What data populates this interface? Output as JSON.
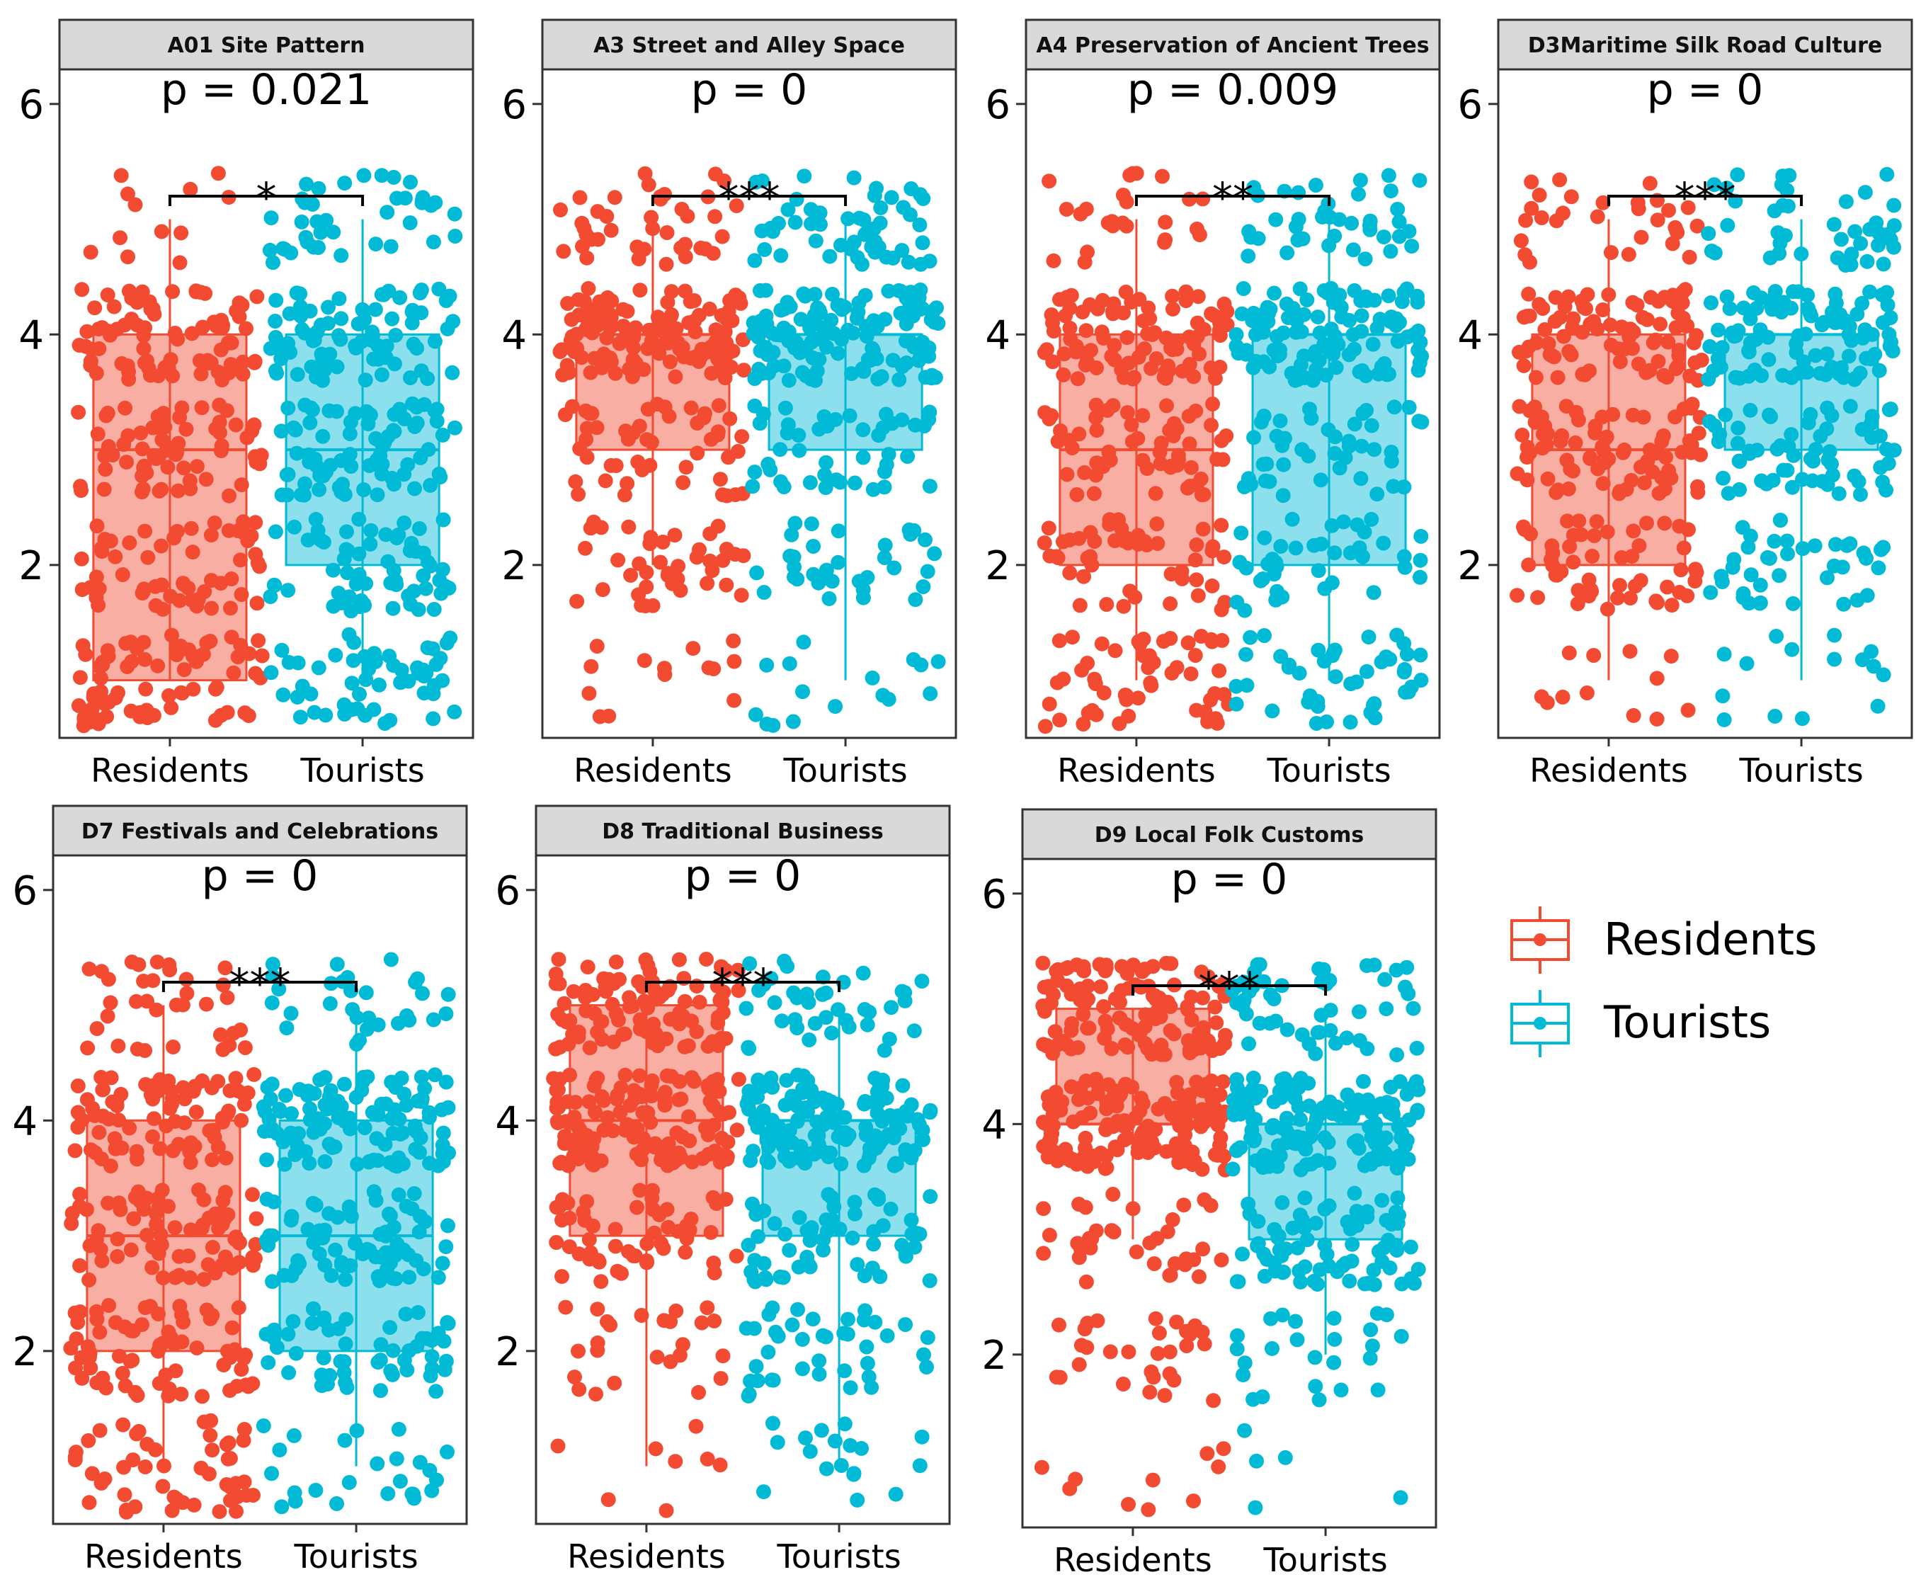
{
  "chart_data": {
    "type": "boxplot-jitter",
    "categories": [
      "Residents",
      "Tourists"
    ],
    "colors": {
      "Residents": "#F24B32",
      "Tourists": "#00BAD6"
    },
    "legend": {
      "placement": "right",
      "entries": [
        "Residents",
        "Tourists"
      ]
    },
    "yticks": [
      2,
      4,
      6
    ],
    "ylim": [
      0.5,
      6.3
    ],
    "panels": [
      {
        "title": "A01  Site Pattern",
        "p_label": "p = 0.021",
        "stars": "*",
        "boxes": [
          {
            "group": "Residents",
            "lower_whisker": 1,
            "q1": 1,
            "median": 3,
            "q3": 4,
            "upper_whisker": 5
          },
          {
            "group": "Tourists",
            "lower_whisker": 1,
            "q1": 2,
            "median": 3,
            "q3": 4,
            "upper_whisker": 5
          }
        ],
        "level_counts": {
          "Residents": [
            75,
            60,
            70,
            85,
            12
          ],
          "Tourists": [
            55,
            65,
            80,
            85,
            40
          ]
        }
      },
      {
        "title": "A3 Street and Alley Space",
        "p_label": "p = 0",
        "stars": "***",
        "boxes": [
          {
            "group": "Residents",
            "lower_whisker": 2,
            "q1": 3,
            "median": 4,
            "q3": 4,
            "upper_whisker": 5
          },
          {
            "group": "Tourists",
            "lower_whisker": 1,
            "q1": 3,
            "median": 4,
            "q3": 4,
            "upper_whisker": 5
          }
        ],
        "level_counts": {
          "Residents": [
            14,
            40,
            50,
            130,
            40
          ],
          "Tourists": [
            16,
            35,
            45,
            125,
            55
          ]
        }
      },
      {
        "title": "A4 Preservation of Ancient Trees",
        "p_label": "p = 0.009",
        "stars": "**",
        "boxes": [
          {
            "group": "Residents",
            "lower_whisker": 1,
            "q1": 2,
            "median": 3,
            "q3": 4,
            "upper_whisker": 5
          },
          {
            "group": "Tourists",
            "lower_whisker": 1,
            "q1": 2,
            "median": 4,
            "q3": 4,
            "upper_whisker": 5
          }
        ],
        "level_counts": {
          "Residents": [
            55,
            50,
            60,
            95,
            25
          ],
          "Tourists": [
            45,
            40,
            45,
            115,
            40
          ]
        }
      },
      {
        "title": "D3Maritime Silk Road Culture",
        "p_label": "p = 0",
        "stars": "***",
        "boxes": [
          {
            "group": "Residents",
            "lower_whisker": 1,
            "q1": 2,
            "median": 3,
            "q3": 4,
            "upper_whisker": 5
          },
          {
            "group": "Tourists",
            "lower_whisker": 1,
            "q1": 3,
            "median": 4,
            "q3": 4,
            "upper_whisker": 5
          }
        ],
        "level_counts": {
          "Residents": [
            12,
            55,
            80,
            90,
            30
          ],
          "Tourists": [
            15,
            40,
            65,
            100,
            45
          ]
        }
      },
      {
        "title": "D7 Festivals and Celebrations",
        "p_label": "p = 0",
        "stars": "***",
        "boxes": [
          {
            "group": "Residents",
            "lower_whisker": 1,
            "q1": 2,
            "median": 3,
            "q3": 4,
            "upper_whisker": 5
          },
          {
            "group": "Tourists",
            "lower_whisker": 1,
            "q1": 2,
            "median": 3,
            "q3": 4,
            "upper_whisker": 5
          }
        ],
        "level_counts": {
          "Residents": [
            50,
            75,
            80,
            80,
            35
          ],
          "Tourists": [
            25,
            55,
            75,
            110,
            30
          ]
        }
      },
      {
        "title": "D8 Traditional Business",
        "p_label": "p = 0",
        "stars": "***",
        "boxes": [
          {
            "group": "Residents",
            "lower_whisker": 1,
            "q1": 3,
            "median": 4,
            "q3": 5,
            "upper_whisker": 5
          },
          {
            "group": "Tourists",
            "lower_whisker": 1,
            "q1": 3,
            "median": 4,
            "q3": 4,
            "upper_whisker": 5
          }
        ],
        "level_counts": {
          "Residents": [
            8,
            25,
            55,
            130,
            100
          ],
          "Tourists": [
            18,
            40,
            60,
            140,
            40
          ]
        }
      },
      {
        "title": "D9 Local Folk Customs",
        "p_label": "p = 0",
        "stars": "***",
        "boxes": [
          {
            "group": "Residents",
            "lower_whisker": 3,
            "q1": 4,
            "median": 4,
            "q3": 5,
            "upper_whisker": 5
          },
          {
            "group": "Tourists",
            "lower_whisker": 2,
            "q1": 3,
            "median": 4,
            "q3": 4,
            "upper_whisker": 5
          }
        ],
        "level_counts": {
          "Residents": [
            10,
            30,
            35,
            150,
            120
          ],
          "Tourists": [
            5,
            25,
            80,
            150,
            50
          ]
        }
      }
    ]
  }
}
